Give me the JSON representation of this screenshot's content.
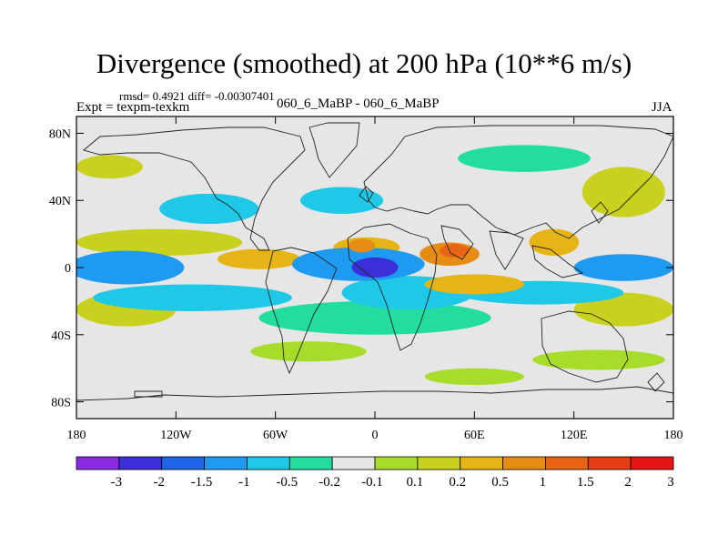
{
  "title": "Divergence (smoothed) at 200 hPa (10**6 m/s)",
  "stats": "rmsd= 0.4921 diff= -0.00307401",
  "experiment_label": "Expt = texpm-texkm",
  "experiment_name": "060_6_MaBP - 060_6_MaBP",
  "season": "JJA",
  "lat_ticks": [
    {
      "label": "80N",
      "lat": 80
    },
    {
      "label": "40N",
      "lat": 40
    },
    {
      "label": "0",
      "lat": 0
    },
    {
      "label": "40S",
      "lat": -40
    },
    {
      "label": "80S",
      "lat": -80
    }
  ],
  "lon_ticks": [
    {
      "label": "180",
      "lon": -180
    },
    {
      "label": "120W",
      "lon": -120
    },
    {
      "label": "60W",
      "lon": -60
    },
    {
      "label": "0",
      "lon": 0
    },
    {
      "label": "60E",
      "lon": 60
    },
    {
      "label": "120E",
      "lon": 120
    },
    {
      "label": "180",
      "lon": 180
    }
  ],
  "colorbar": {
    "colors": [
      "#8a2be2",
      "#3a2fd8",
      "#1e64e6",
      "#1e9af0",
      "#1ec8e6",
      "#22dca0",
      "#e6e6e6",
      "#a8dc2a",
      "#c8d21e",
      "#e6b414",
      "#e68c14",
      "#eb6414",
      "#e63c14",
      "#e61414"
    ],
    "labels": [
      "-3",
      "-2",
      "-1.5",
      "-1",
      "-0.5",
      "-0.2",
      "-0.1",
      "0.1",
      "0.2",
      "0.5",
      "1",
      "1.5",
      "2",
      "3"
    ]
  },
  "field_features": [
    {
      "level": -2,
      "lon": 0,
      "lat": 0,
      "rx": 14,
      "ry": 6
    },
    {
      "level": -1,
      "lon": -10,
      "lat": 2,
      "rx": 40,
      "ry": 10
    },
    {
      "level": -1,
      "lon": -150,
      "lat": 0,
      "rx": 35,
      "ry": 10
    },
    {
      "level": -1,
      "lon": 150,
      "lat": 0,
      "rx": 30,
      "ry": 8
    },
    {
      "level": -0.5,
      "lon": -110,
      "lat": -18,
      "rx": 60,
      "ry": 8
    },
    {
      "level": -0.5,
      "lon": 20,
      "lat": -15,
      "rx": 40,
      "ry": 10
    },
    {
      "level": -0.5,
      "lon": 100,
      "lat": -15,
      "rx": 50,
      "ry": 7
    },
    {
      "level": -0.5,
      "lon": -20,
      "lat": 40,
      "rx": 25,
      "ry": 8
    },
    {
      "level": -0.5,
      "lon": -100,
      "lat": 35,
      "rx": 30,
      "ry": 9
    },
    {
      "level": -0.2,
      "lon": 0,
      "lat": -30,
      "rx": 70,
      "ry": 10
    },
    {
      "level": -0.2,
      "lon": 90,
      "lat": 65,
      "rx": 40,
      "ry": 8
    },
    {
      "level": 1,
      "lon": 45,
      "lat": 8,
      "rx": 18,
      "ry": 7
    },
    {
      "level": 1.5,
      "lon": 48,
      "lat": 10,
      "rx": 9,
      "ry": 4
    },
    {
      "level": 0.5,
      "lon": -5,
      "lat": 12,
      "rx": 20,
      "ry": 6
    },
    {
      "level": 1,
      "lon": -8,
      "lat": 13,
      "rx": 8,
      "ry": 4
    },
    {
      "level": 0.5,
      "lon": 108,
      "lat": 15,
      "rx": 15,
      "ry": 8
    },
    {
      "level": 0.5,
      "lon": -70,
      "lat": 5,
      "rx": 25,
      "ry": 6
    },
    {
      "level": 0.5,
      "lon": 60,
      "lat": -10,
      "rx": 30,
      "ry": 6
    },
    {
      "level": 0.2,
      "lon": -130,
      "lat": 15,
      "rx": 50,
      "ry": 8
    },
    {
      "level": 0.2,
      "lon": -150,
      "lat": -25,
      "rx": 30,
      "ry": 10
    },
    {
      "level": 0.2,
      "lon": 150,
      "lat": -25,
      "rx": 30,
      "ry": 10
    },
    {
      "level": 0.2,
      "lon": 150,
      "lat": 45,
      "rx": 25,
      "ry": 15
    },
    {
      "level": 0.2,
      "lon": -160,
      "lat": 60,
      "rx": 20,
      "ry": 7
    },
    {
      "level": 0.1,
      "lon": -40,
      "lat": -50,
      "rx": 35,
      "ry": 6
    },
    {
      "level": 0.1,
      "lon": 60,
      "lat": -65,
      "rx": 30,
      "ry": 5
    },
    {
      "level": 0.1,
      "lon": 135,
      "lat": -55,
      "rx": 40,
      "ry": 6
    }
  ]
}
